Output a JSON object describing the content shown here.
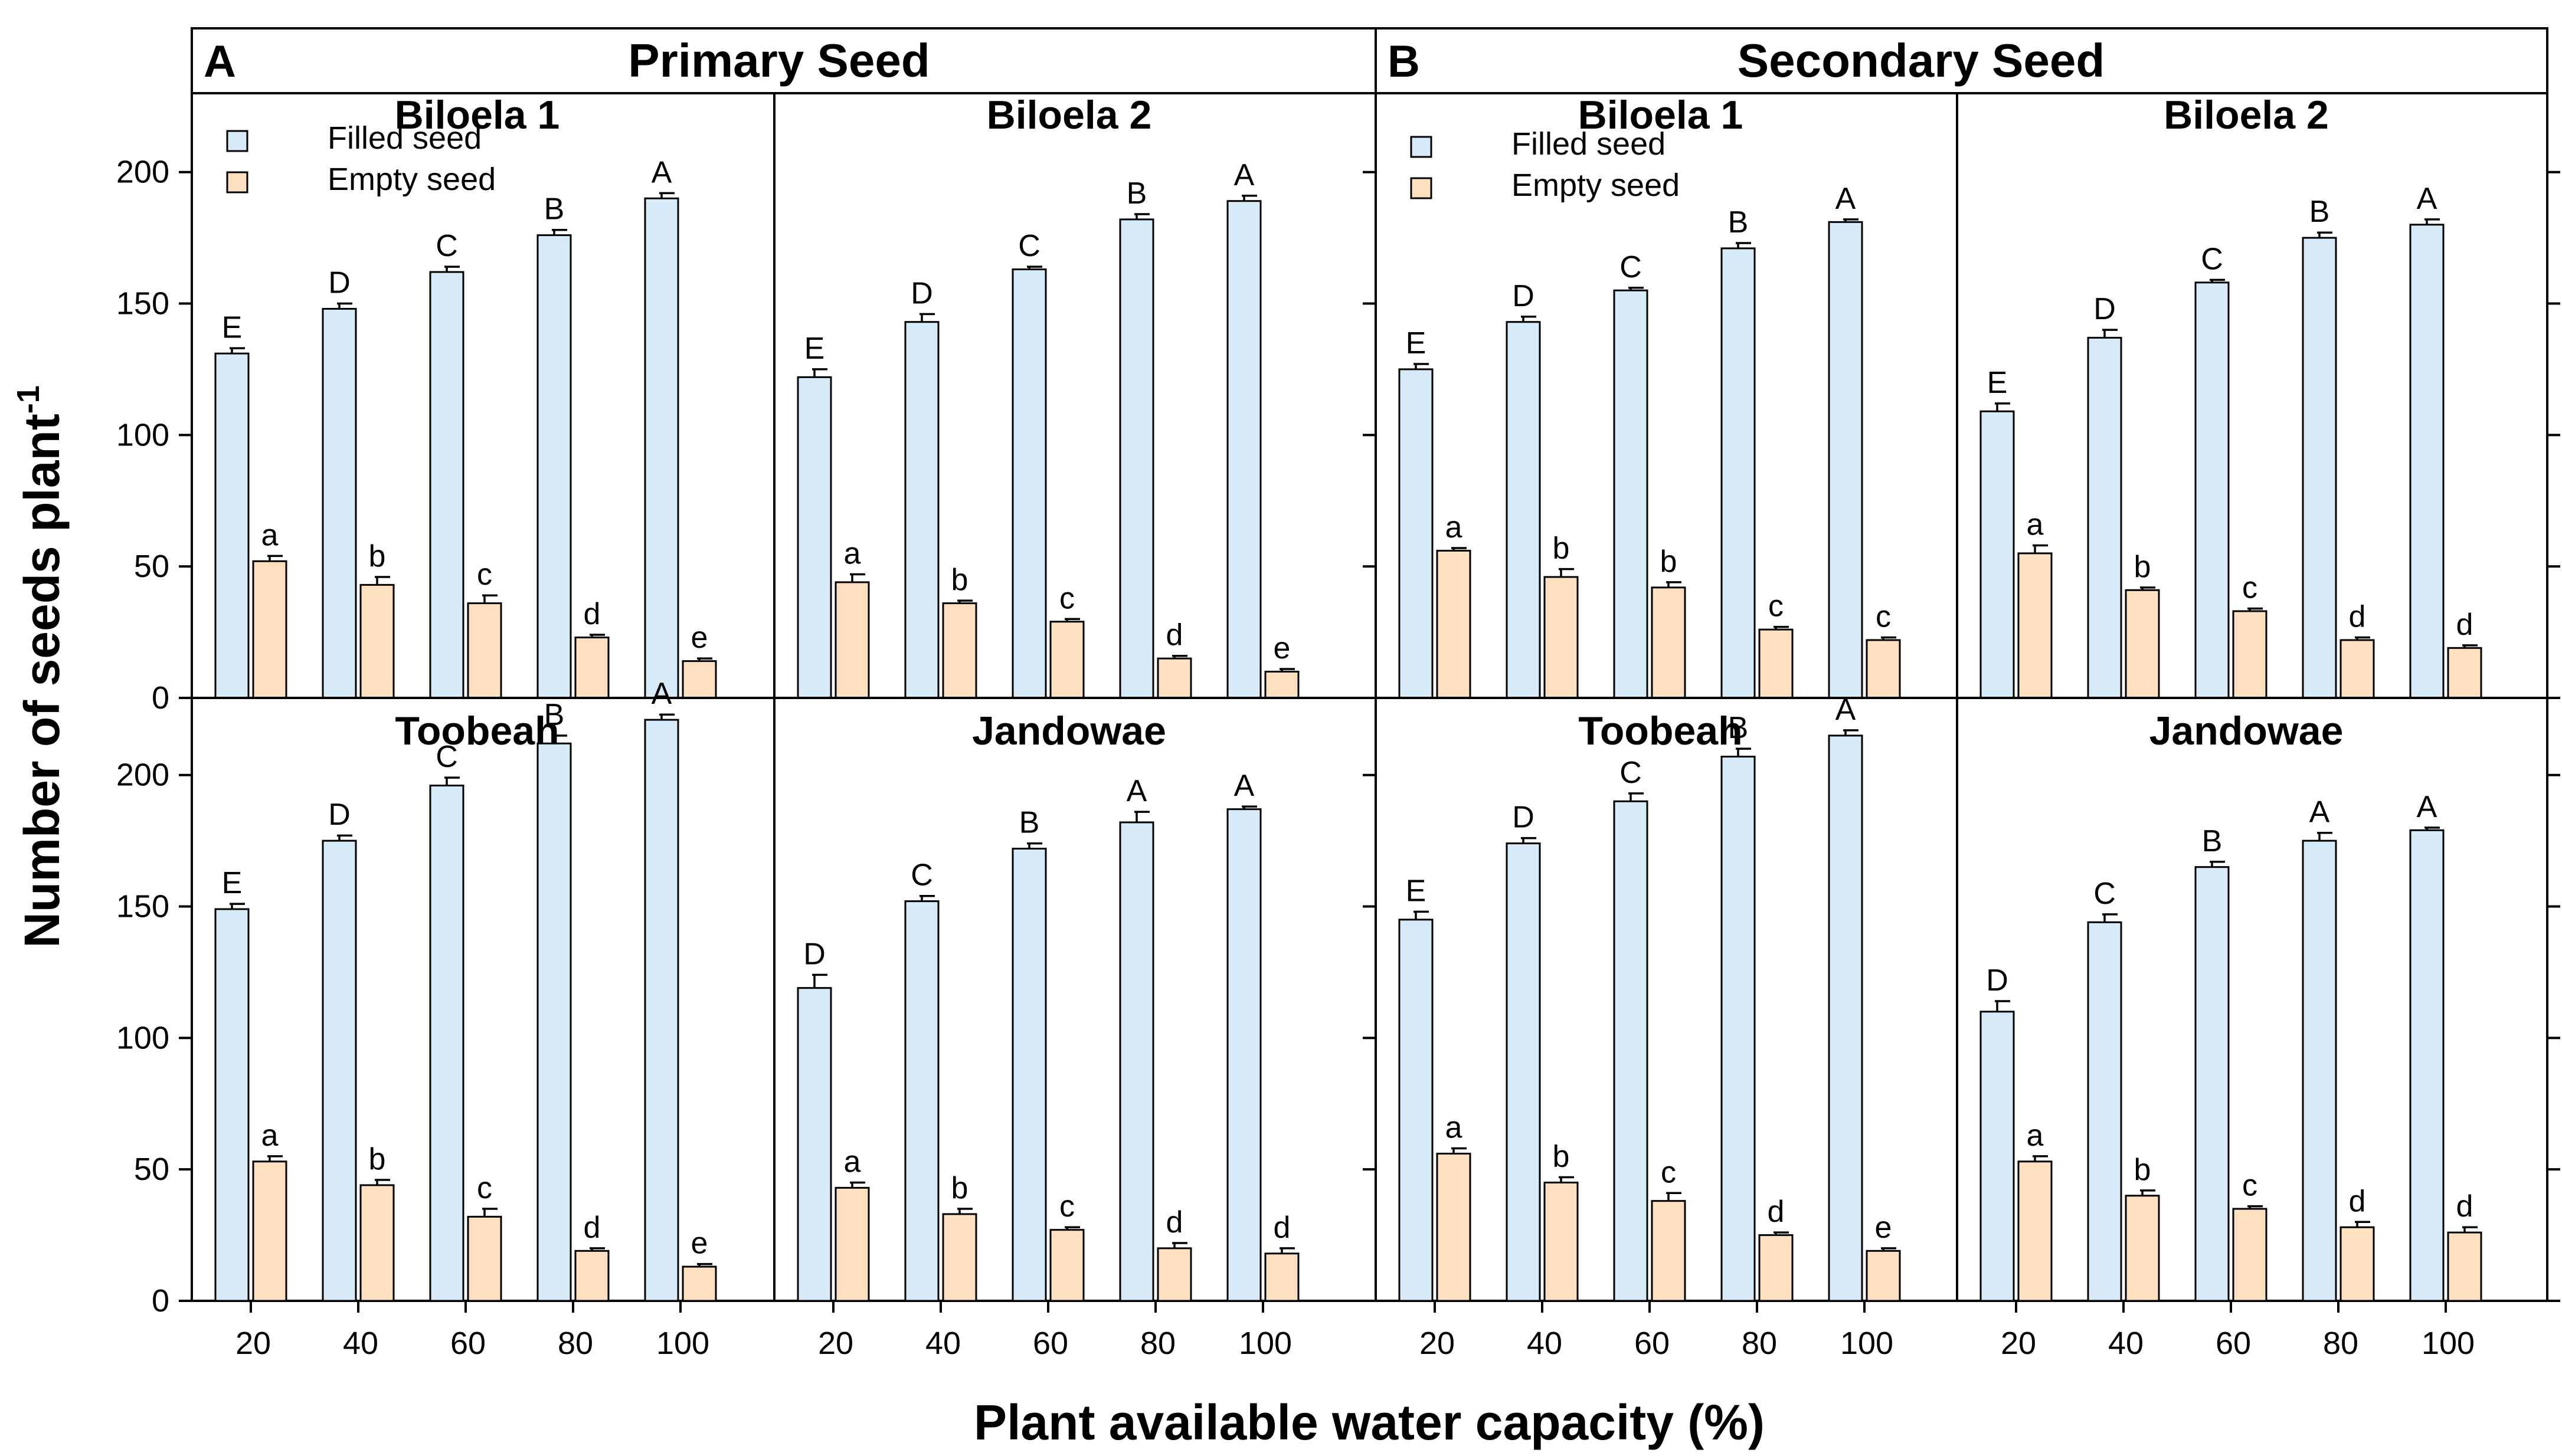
{
  "figure": {
    "ylabel_main": "Number of seeds plant",
    "ylabel_sup": "-1",
    "xlabel": "Plant available water capacity (%)"
  },
  "sections": [
    {
      "letter": "A",
      "title": "Primary Seed"
    },
    {
      "letter": "B",
      "title": "Secondary Seed"
    }
  ],
  "legend": {
    "filled": "Filled seed",
    "empty": "Empty seed"
  },
  "colors": {
    "filled": "#d6eaf8",
    "empty": "#fce0c0",
    "outline": "#000000"
  },
  "chart_data": [
    {
      "type": "bar",
      "section": "Primary Seed",
      "title": "Biloela 1",
      "categories": [
        "20",
        "40",
        "60",
        "80",
        "100"
      ],
      "ylim": [
        0,
        230
      ],
      "series": [
        {
          "name": "Filled seed",
          "values": [
            131,
            148,
            162,
            176,
            190
          ],
          "errors": [
            2,
            2,
            2,
            2,
            2
          ],
          "labels": [
            "E",
            "D",
            "C",
            "B",
            "A"
          ]
        },
        {
          "name": "Empty seed",
          "values": [
            52,
            43,
            36,
            23,
            14
          ],
          "errors": [
            2,
            3,
            3,
            1,
            1
          ],
          "labels": [
            "a",
            "b",
            "c",
            "d",
            "e"
          ]
        }
      ]
    },
    {
      "type": "bar",
      "section": "Primary Seed",
      "title": "Biloela 2",
      "categories": [
        "20",
        "40",
        "60",
        "80",
        "100"
      ],
      "ylim": [
        0,
        230
      ],
      "series": [
        {
          "name": "Filled seed",
          "values": [
            122,
            143,
            163,
            182,
            189
          ],
          "errors": [
            3,
            3,
            1,
            2,
            2
          ],
          "labels": [
            "E",
            "D",
            "C",
            "B",
            "A"
          ]
        },
        {
          "name": "Empty seed",
          "values": [
            44,
            36,
            29,
            15,
            10
          ],
          "errors": [
            3,
            1,
            1,
            1,
            1
          ],
          "labels": [
            "a",
            "b",
            "c",
            "d",
            "e"
          ]
        }
      ]
    },
    {
      "type": "bar",
      "section": "Secondary Seed",
      "title": "Biloela 1",
      "categories": [
        "20",
        "40",
        "60",
        "80",
        "100"
      ],
      "ylim": [
        0,
        230
      ],
      "series": [
        {
          "name": "Filled seed",
          "values": [
            125,
            143,
            155,
            171,
            181
          ],
          "errors": [
            2,
            2,
            1,
            2,
            1
          ],
          "labels": [
            "E",
            "D",
            "C",
            "B",
            "A"
          ]
        },
        {
          "name": "Empty seed",
          "values": [
            56,
            46,
            42,
            26,
            22
          ],
          "errors": [
            1,
            3,
            2,
            1,
            1
          ],
          "labels": [
            "a",
            "b",
            "b",
            "c",
            "c"
          ]
        }
      ]
    },
    {
      "type": "bar",
      "section": "Secondary Seed",
      "title": "Biloela 2",
      "categories": [
        "20",
        "40",
        "60",
        "80",
        "100"
      ],
      "ylim": [
        0,
        230
      ],
      "series": [
        {
          "name": "Filled seed",
          "values": [
            109,
            137,
            158,
            175,
            180
          ],
          "errors": [
            3,
            3,
            1,
            2,
            2
          ],
          "labels": [
            "E",
            "D",
            "C",
            "B",
            "A"
          ]
        },
        {
          "name": "Empty seed",
          "values": [
            55,
            41,
            33,
            22,
            19
          ],
          "errors": [
            3,
            1,
            1,
            1,
            1
          ],
          "labels": [
            "a",
            "b",
            "c",
            "d",
            "d"
          ]
        }
      ]
    },
    {
      "type": "bar",
      "section": "Primary Seed",
      "title": "Toobeah",
      "categories": [
        "20",
        "40",
        "60",
        "80",
        "100"
      ],
      "ylim": [
        0,
        230
      ],
      "series": [
        {
          "name": "Filled seed",
          "values": [
            149,
            175,
            196,
            212,
            221
          ],
          "errors": [
            2,
            2,
            3,
            3,
            2
          ],
          "labels": [
            "E",
            "D",
            "C",
            "B",
            "A"
          ]
        },
        {
          "name": "Empty seed",
          "values": [
            53,
            44,
            32,
            19,
            13
          ],
          "errors": [
            2,
            2,
            3,
            1,
            1
          ],
          "labels": [
            "a",
            "b",
            "c",
            "d",
            "e"
          ]
        }
      ]
    },
    {
      "type": "bar",
      "section": "Primary Seed",
      "title": "Jandowae",
      "categories": [
        "20",
        "40",
        "60",
        "80",
        "100"
      ],
      "ylim": [
        0,
        230
      ],
      "series": [
        {
          "name": "Filled seed",
          "values": [
            119,
            152,
            172,
            182,
            187
          ],
          "errors": [
            5,
            2,
            2,
            4,
            1
          ],
          "labels": [
            "D",
            "C",
            "B",
            "A",
            "A"
          ]
        },
        {
          "name": "Empty seed",
          "values": [
            43,
            33,
            27,
            20,
            18
          ],
          "errors": [
            2,
            2,
            1,
            2,
            2
          ],
          "labels": [
            "a",
            "b",
            "c",
            "d",
            "d"
          ]
        }
      ]
    },
    {
      "type": "bar",
      "section": "Secondary Seed",
      "title": "Toobeah",
      "categories": [
        "20",
        "40",
        "60",
        "80",
        "100"
      ],
      "ylim": [
        0,
        230
      ],
      "series": [
        {
          "name": "Filled seed",
          "values": [
            145,
            174,
            190,
            207,
            215
          ],
          "errors": [
            3,
            2,
            3,
            3,
            2
          ],
          "labels": [
            "E",
            "D",
            "C",
            "B",
            "A"
          ]
        },
        {
          "name": "Empty seed",
          "values": [
            56,
            45,
            38,
            25,
            19
          ],
          "errors": [
            2,
            2,
            3,
            1,
            1
          ],
          "labels": [
            "a",
            "b",
            "c",
            "d",
            "e"
          ]
        }
      ]
    },
    {
      "type": "bar",
      "section": "Secondary Seed",
      "title": "Jandowae",
      "categories": [
        "20",
        "40",
        "60",
        "80",
        "100"
      ],
      "ylim": [
        0,
        230
      ],
      "series": [
        {
          "name": "Filled seed",
          "values": [
            110,
            144,
            165,
            175,
            179
          ],
          "errors": [
            4,
            3,
            2,
            3,
            1
          ],
          "labels": [
            "D",
            "C",
            "B",
            "A",
            "A"
          ]
        },
        {
          "name": "Empty seed",
          "values": [
            53,
            40,
            35,
            28,
            26
          ],
          "errors": [
            2,
            2,
            1,
            2,
            2
          ],
          "labels": [
            "a",
            "b",
            "c",
            "d",
            "d"
          ]
        }
      ]
    }
  ],
  "axis": {
    "yticks": [
      "0",
      "50",
      "100",
      "150",
      "200"
    ],
    "ytick_values": [
      0,
      50,
      100,
      150,
      200
    ]
  }
}
